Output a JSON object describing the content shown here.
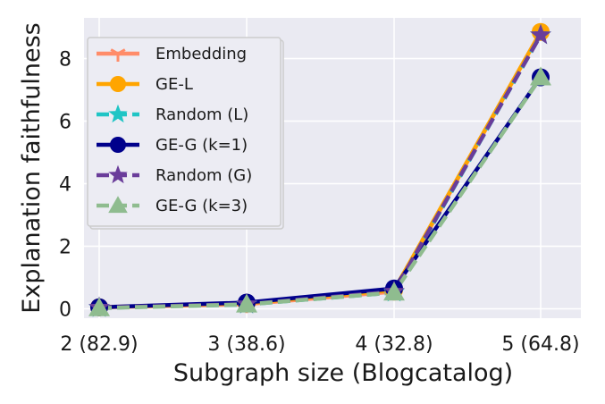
{
  "chart_data": {
    "type": "line",
    "title": "",
    "xlabel": "Subgraph size (Blogcatalog)",
    "ylabel": "Explanation faithfulness",
    "categories": [
      "2 (82.9)",
      "3 (38.6)",
      "4 (32.8)",
      "5 (64.8)"
    ],
    "ylim": [
      -0.3,
      9.3
    ],
    "yticks": [
      0,
      2,
      4,
      6,
      8
    ],
    "grid": true,
    "background": "#eaeaf2",
    "legend_position": "upper-left",
    "series": [
      {
        "name": "Embedding",
        "values": [
          0.05,
          0.15,
          0.55,
          8.85
        ],
        "color": "#ff8c69",
        "marker": "tri-down",
        "dash": "solid"
      },
      {
        "name": "GE-L",
        "values": [
          0.05,
          0.18,
          0.6,
          8.85
        ],
        "color": "#ffa500",
        "marker": "circle",
        "dash": "solid"
      },
      {
        "name": "Random (L)",
        "values": [
          0.03,
          0.14,
          0.52,
          8.75
        ],
        "color": "#20c5c5",
        "marker": "star",
        "dash": "dashed"
      },
      {
        "name": "GE-G (k=1)",
        "values": [
          0.05,
          0.2,
          0.65,
          7.4
        ],
        "color": "#00008b",
        "marker": "circle",
        "dash": "solid"
      },
      {
        "name": "Random (G)",
        "values": [
          0.04,
          0.15,
          0.55,
          8.75
        ],
        "color": "#6a3d9a",
        "marker": "star",
        "dash": "dashed"
      },
      {
        "name": "GE-G (k=3)",
        "values": [
          0.02,
          0.14,
          0.52,
          7.4
        ],
        "color": "#8fbc8f",
        "marker": "triangle",
        "dash": "dashed"
      }
    ]
  }
}
